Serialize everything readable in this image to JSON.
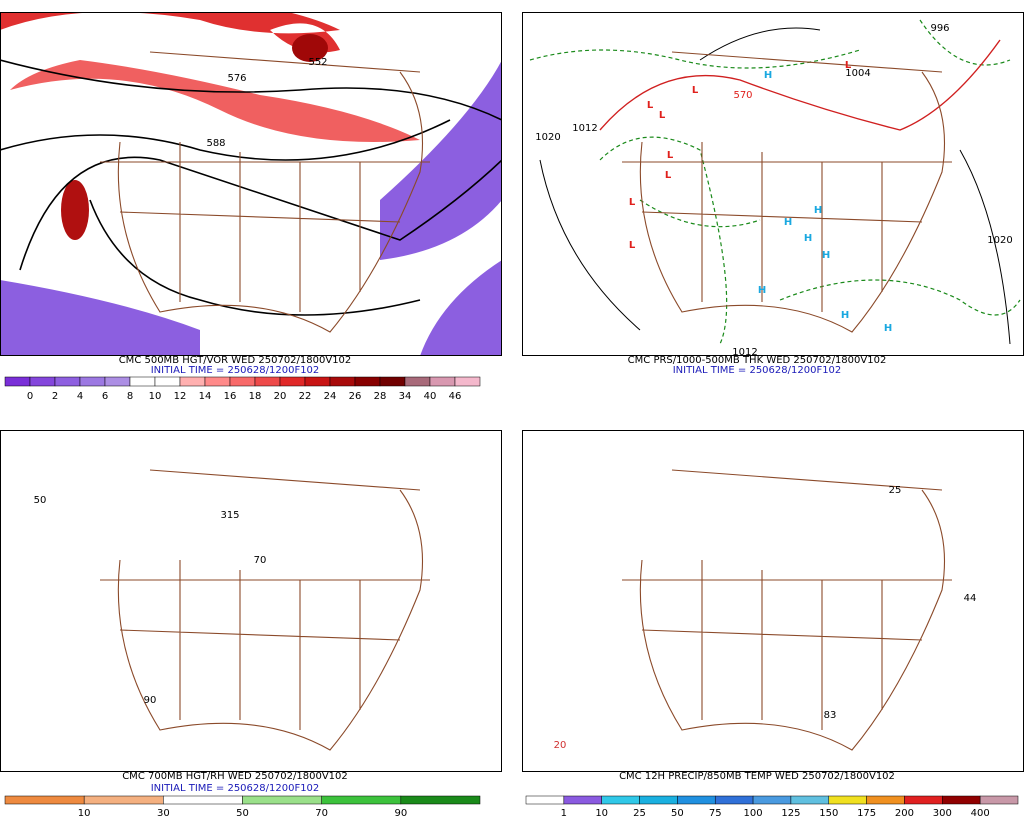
{
  "panels": [
    {
      "caption": "CMC 500MB HGT/VOR WED 250702/1800V102",
      "initial_time": "INITIAL TIME = 250628/1200F102",
      "labels": [
        {
          "text": "576",
          "color": "#000000"
        },
        {
          "text": "552",
          "color": "#000000"
        },
        {
          "text": "588",
          "color": "#000000"
        }
      ],
      "colorbar": {
        "labels": [
          "0",
          "2",
          "4",
          "6",
          "8",
          "10",
          "12",
          "14",
          "16",
          "18",
          "20",
          "22",
          "24",
          "26",
          "28",
          "34",
          "40",
          "46"
        ],
        "colors": [
          "#7a2fd8",
          "#8446dc",
          "#8e5fe0",
          "#9c78e2",
          "#ac8ee4",
          "#ffffff",
          "#ffffff",
          "#ffb0b0",
          "#ff8a8a",
          "#f86a6a",
          "#ee4a4a",
          "#e02828",
          "#c81414",
          "#a80a0a",
          "#880000",
          "#700000",
          "#a86a7a",
          "#d898b0",
          "#f4b8cc"
        ]
      }
    },
    {
      "caption": "CMC PRS/1000-500MB THK WED 250702/1800V102",
      "initial_time": "INITIAL TIME = 250628/1200F102",
      "labels": [
        {
          "text": "L",
          "color": "#e0201c"
        },
        {
          "text": "L",
          "color": "#e0201c"
        },
        {
          "text": "L",
          "color": "#e0201c"
        },
        {
          "text": "L",
          "color": "#e0201c"
        },
        {
          "text": "L",
          "color": "#e0201c"
        },
        {
          "text": "L",
          "color": "#e0201c"
        },
        {
          "text": "L",
          "color": "#e0201c"
        },
        {
          "text": "L",
          "color": "#e0201c"
        },
        {
          "text": "H",
          "color": "#1aa8e0"
        },
        {
          "text": "H",
          "color": "#1aa8e0"
        },
        {
          "text": "H",
          "color": "#1aa8e0"
        },
        {
          "text": "H",
          "color": "#1aa8e0"
        },
        {
          "text": "H",
          "color": "#1aa8e0"
        },
        {
          "text": "H",
          "color": "#1aa8e0"
        },
        {
          "text": "H",
          "color": "#1aa8e0"
        },
        {
          "text": "H",
          "color": "#1aa8e0"
        },
        {
          "text": "1020",
          "color": "#000000"
        },
        {
          "text": "1012",
          "color": "#000000"
        },
        {
          "text": "1004",
          "color": "#000000"
        },
        {
          "text": "996",
          "color": "#000000"
        },
        {
          "text": "1020",
          "color": "#000000"
        },
        {
          "text": "1012",
          "color": "#000000"
        },
        {
          "text": "570",
          "color": "#e0201c"
        }
      ]
    },
    {
      "caption": "CMC 700MB HGT/RH WED 250702/1800V102",
      "initial_time": "INITIAL TIME = 250628/1200F102",
      "labels": [
        {
          "text": "50",
          "color": "#000000"
        },
        {
          "text": "90",
          "color": "#000000"
        },
        {
          "text": "70",
          "color": "#000000"
        },
        {
          "text": "315",
          "color": "#000000"
        }
      ],
      "colorbar": {
        "labels": [
          "10",
          "30",
          "50",
          "70",
          "90"
        ],
        "colors": [
          "#ee8a40",
          "#f4b080",
          "#ffffff",
          "#9ae08a",
          "#3cc23c",
          "#1a8a1a"
        ]
      }
    },
    {
      "caption": "CMC 12H PRECIP/850MB TEMP WED 250702/1800V102",
      "labels": [
        {
          "text": "20",
          "color": "#d03030"
        },
        {
          "text": "25",
          "color": "#000000"
        },
        {
          "text": "44",
          "color": "#000000"
        },
        {
          "text": "83",
          "color": "#000000"
        }
      ],
      "colorbar": {
        "labels": [
          "1",
          "10",
          "25",
          "50",
          "75",
          "100",
          "125",
          "150",
          "175",
          "200",
          "300",
          "400"
        ],
        "colors": [
          "#ffffff",
          "#8a5ae0",
          "#30c8e8",
          "#1ab0e0",
          "#2090e0",
          "#3070d8",
          "#4a9ae0",
          "#60c0e0",
          "#f0e020",
          "#f09020",
          "#e02020",
          "#900000",
          "#c898a8"
        ]
      }
    }
  ]
}
